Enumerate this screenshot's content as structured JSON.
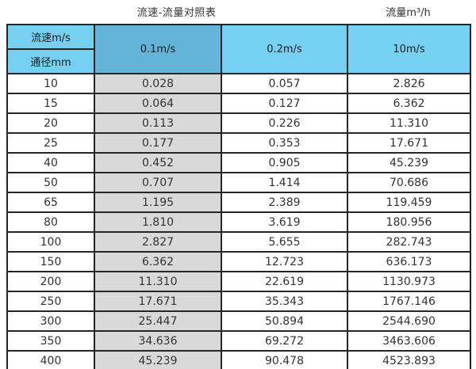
{
  "page": {
    "title": "流速-流量对照表",
    "unit_label": "流量m³/h"
  },
  "colors": {
    "header_blue": "#76D0F1",
    "highlight_header_blue": "#63B4D8",
    "highlight_column_gray": "#D9D9D9",
    "border_dark": "#262626",
    "text_dark": "#333333"
  },
  "chart_data": {
    "type": "table",
    "title": "流速-流量对照表",
    "unit_label": "流量m³/h",
    "corner_labels": [
      "流速m/s",
      "通径mm"
    ],
    "columns": [
      "0.1m/s",
      "0.2m/s",
      "10m/s"
    ],
    "highlighted_column": "0.1m/s",
    "rows": [
      {
        "diameter": "10",
        "values": [
          "0.028",
          "0.057",
          "2.826"
        ]
      },
      {
        "diameter": "15",
        "values": [
          "0.064",
          "0.127",
          "6.362"
        ]
      },
      {
        "diameter": "20",
        "values": [
          "0.113",
          "0.226",
          "11.310"
        ]
      },
      {
        "diameter": "25",
        "values": [
          "0.177",
          "0.353",
          "17.671"
        ]
      },
      {
        "diameter": "40",
        "values": [
          "0.452",
          "0.905",
          "45.239"
        ]
      },
      {
        "diameter": "50",
        "values": [
          "0.707",
          "1.414",
          "70.686"
        ]
      },
      {
        "diameter": "65",
        "values": [
          "1.195",
          "2.389",
          "119.459"
        ]
      },
      {
        "diameter": "80",
        "values": [
          "1.810",
          "3.619",
          "180.956"
        ]
      },
      {
        "diameter": "100",
        "values": [
          "2.827",
          "5.655",
          "282.743"
        ]
      },
      {
        "diameter": "150",
        "values": [
          "6.362",
          "12.723",
          "636.173"
        ]
      },
      {
        "diameter": "200",
        "values": [
          "11.310",
          "22.619",
          "1130.973"
        ]
      },
      {
        "diameter": "250",
        "values": [
          "17.671",
          "35.343",
          "1767.146"
        ]
      },
      {
        "diameter": "300",
        "values": [
          "25.447",
          "50.894",
          "2544.690"
        ]
      },
      {
        "diameter": "350",
        "values": [
          "34.636",
          "69.272",
          "3463.606"
        ]
      },
      {
        "diameter": "400",
        "values": [
          "45.239",
          "90.478",
          "4523.893"
        ]
      }
    ]
  }
}
